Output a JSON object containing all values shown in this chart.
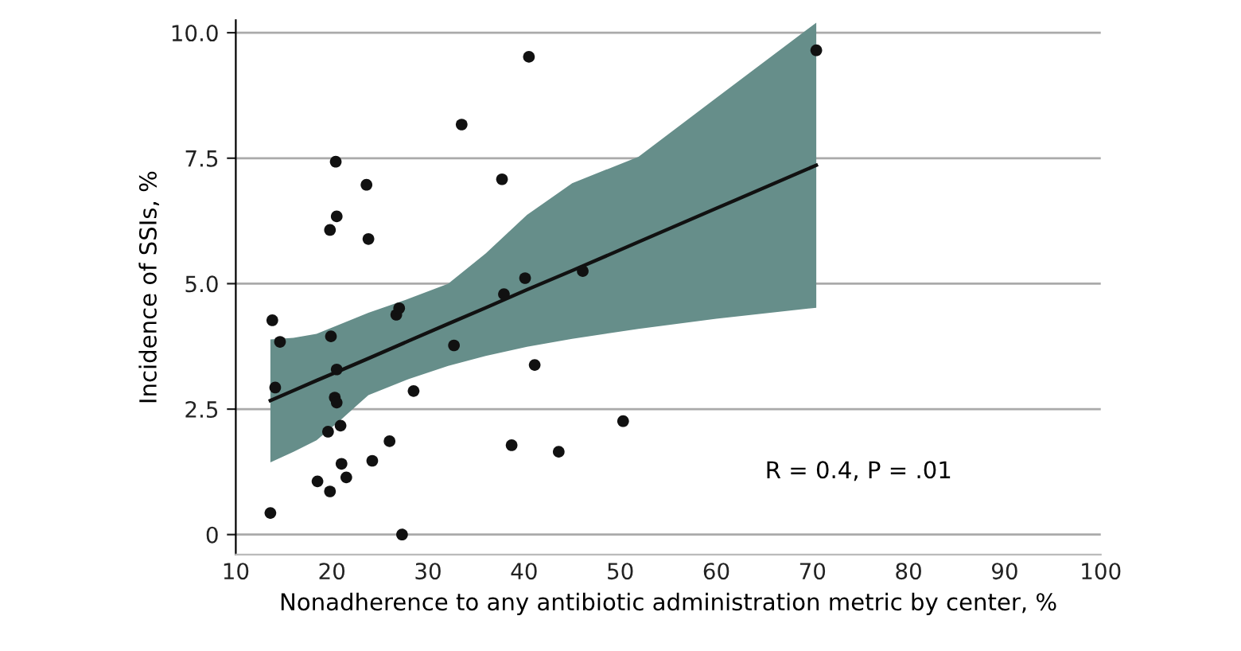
{
  "chart_data": {
    "type": "scatter",
    "xlabel": "Nonadherence to any antibiotic administration metric by center, %",
    "ylabel": "Incidence of SSIs, %",
    "xlim": [
      10,
      100
    ],
    "xticks": [
      10,
      20,
      30,
      40,
      50,
      60,
      70,
      80,
      90,
      100
    ],
    "ylim": [
      -0.4,
      10.25
    ],
    "yticks": [
      0,
      {
        "value": 2.5,
        "label": "2.5"
      },
      {
        "value": 5,
        "label": "5.0"
      },
      {
        "value": 7.5,
        "label": "7.5"
      },
      {
        "value": 10,
        "label": "10.0"
      }
    ],
    "grid": "y",
    "legend": false,
    "annotations": [
      "R = 0.4, P = .01"
    ],
    "series": [
      {
        "type": "line",
        "color": "#111111",
        "x": [
          13.6,
          16,
          18.4,
          21,
          23.8,
          28,
          32.1,
          36,
          40.3,
          45,
          51.9,
          60,
          70.4
        ],
        "values": [
          2.67,
          2.87,
          3.07,
          3.28,
          3.51,
          3.86,
          4.2,
          4.52,
          4.88,
          5.26,
          5.83,
          6.5,
          7.36
        ],
        "lower": [
          1.44,
          1.65,
          1.88,
          2.3,
          2.78,
          3.1,
          3.36,
          3.56,
          3.74,
          3.9,
          4.1,
          4.3,
          4.52
        ],
        "upper": [
          3.89,
          3.92,
          4.0,
          4.2,
          4.42,
          4.7,
          5.0,
          5.6,
          6.37,
          7.0,
          7.53,
          8.7,
          10.2
        ]
      },
      {
        "color": "#111111",
        "marker": "circle",
        "x": [
          13.6,
          13.8,
          14.1,
          14.6,
          18.5,
          19.8,
          19.6,
          19.8,
          19.9,
          20.4,
          20.5,
          20.5,
          20.3,
          20.5,
          20.9,
          21.0,
          21.5,
          23.6,
          23.8,
          24.2,
          26.0,
          26.7,
          27.0,
          27.3,
          28.5,
          32.7,
          33.5,
          37.7,
          37.9,
          38.7,
          40.1,
          40.5,
          41.1,
          43.6,
          46.1,
          50.3,
          70.4
        ],
        "values": [
          0.43,
          4.27,
          2.93,
          3.84,
          1.06,
          0.86,
          2.05,
          6.07,
          3.95,
          7.43,
          6.34,
          3.29,
          2.73,
          2.63,
          2.17,
          1.41,
          1.14,
          6.97,
          5.89,
          1.47,
          1.86,
          4.38,
          4.51,
          0.0,
          2.86,
          3.77,
          8.17,
          7.08,
          4.79,
          1.78,
          5.11,
          9.52,
          3.38,
          1.65,
          5.25,
          2.26,
          9.65
        ]
      }
    ]
  }
}
